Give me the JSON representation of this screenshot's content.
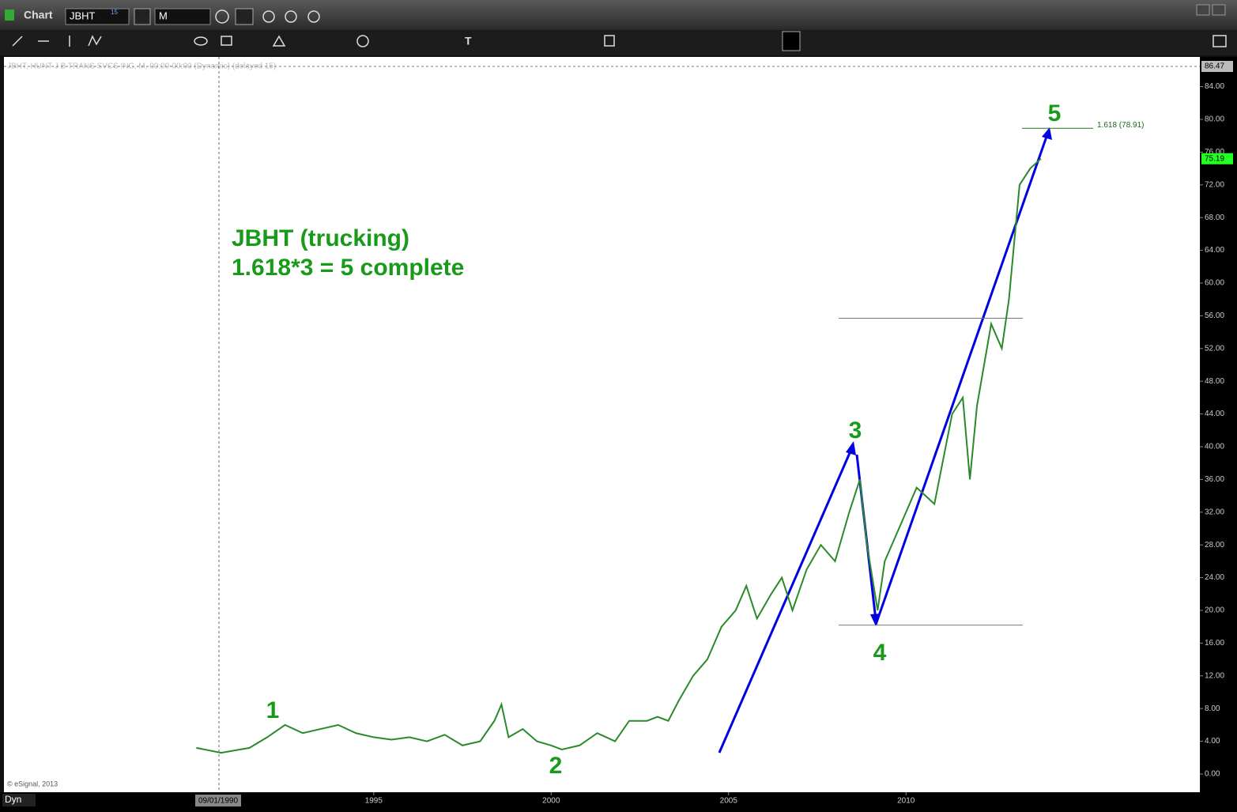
{
  "window": {
    "title": "Chart",
    "symbol": "JBHT",
    "symbol_badge": "15",
    "interval": "M",
    "status": "Dyn"
  },
  "chart_data": {
    "type": "line",
    "header": "JBHT, HUNT J B TRANS SVCS INC, M, 00:00-00:00 (Dynamic) (delayed 15)",
    "annotation": [
      "JBHT (trucking)",
      "1.618*3 = 5 complete"
    ],
    "wave_labels": [
      "1",
      "2",
      "3",
      "4",
      "5"
    ],
    "copyright": "© eSignal, 2013",
    "cursor_label": "09/01/1990",
    "color": "#2a8a2a",
    "x": [
      1990.0,
      1990.7,
      1991.5,
      1992.0,
      1992.5,
      1993.0,
      1993.5,
      1994.0,
      1994.5,
      1995.0,
      1995.5,
      1996.0,
      1996.5,
      1997.0,
      1997.5,
      1998.0,
      1998.4,
      1998.6,
      1998.8,
      1999.2,
      1999.6,
      2000.0,
      2000.3,
      2000.8,
      2001.3,
      2001.8,
      2002.2,
      2002.7,
      2003.0,
      2003.3,
      2003.6,
      2004.0,
      2004.4,
      2004.8,
      2005.2,
      2005.5,
      2005.8,
      2006.2,
      2006.5,
      2006.8,
      2007.2,
      2007.6,
      2008.0,
      2008.4,
      2008.7,
      2008.9,
      2009.2,
      2009.4,
      2009.8,
      2010.3,
      2010.8,
      2011.3,
      2011.6,
      2011.8,
      2012.0,
      2012.4,
      2012.7,
      2012.9,
      2013.2,
      2013.5,
      2013.8
    ],
    "values": [
      3.2,
      2.6,
      3.2,
      4.5,
      6.0,
      5.0,
      5.5,
      6.0,
      5.0,
      4.5,
      4.2,
      4.5,
      4.0,
      4.8,
      3.5,
      4.0,
      6.5,
      8.5,
      4.5,
      5.5,
      4.0,
      3.5,
      3.0,
      3.5,
      5.0,
      4.0,
      6.5,
      6.5,
      7.0,
      6.5,
      9.0,
      12.0,
      14.0,
      18.0,
      20.0,
      23.0,
      19.0,
      22.0,
      24.0,
      20.0,
      25.0,
      28.0,
      26.0,
      32.0,
      36.0,
      28.0,
      20.0,
      26.0,
      30.0,
      35.0,
      33.0,
      44.0,
      46.0,
      36.0,
      45.0,
      55.0,
      52.0,
      58.0,
      72.0,
      74.0,
      75.19
    ],
    "last_price": 75.19,
    "high_marker": 86.47,
    "fib_level": {
      "value": 78.91,
      "label": "1.618 (78.91)"
    },
    "levels": [
      55.7,
      18.2
    ],
    "xlim": [
      1984.58,
      2018.28
    ],
    "ylim": [
      -2.03,
      87.63
    ],
    "xticks": [
      1995,
      2000,
      2005,
      2010
    ],
    "yticks": [
      {
        "value": 0,
        "label": "0.00"
      },
      {
        "value": 4,
        "label": "4.00"
      },
      {
        "value": 8,
        "label": "8.00"
      },
      {
        "value": 12,
        "label": "12.00"
      },
      {
        "value": 16,
        "label": "16.00"
      },
      {
        "value": 20,
        "label": "20.00"
      },
      {
        "value": 24,
        "label": "24.00"
      },
      {
        "value": 28,
        "label": "28.00"
      },
      {
        "value": 32,
        "label": "32.00"
      },
      {
        "value": 36,
        "label": "36.00"
      },
      {
        "value": 40,
        "label": "40.00"
      },
      {
        "value": 44,
        "label": "44.00"
      },
      {
        "value": 48,
        "label": "48.00"
      },
      {
        "value": 52,
        "label": "52.00"
      },
      {
        "value": 56,
        "label": "56.00"
      },
      {
        "value": 60,
        "label": "60.00"
      },
      {
        "value": 64,
        "label": "64.00"
      },
      {
        "value": 68,
        "label": "68.00"
      },
      {
        "value": 72,
        "label": "72.00"
      },
      {
        "value": 76,
        "label": "76.00"
      },
      {
        "value": 80,
        "label": "80.00"
      },
      {
        "value": 84,
        "label": "84.00"
      }
    ]
  }
}
